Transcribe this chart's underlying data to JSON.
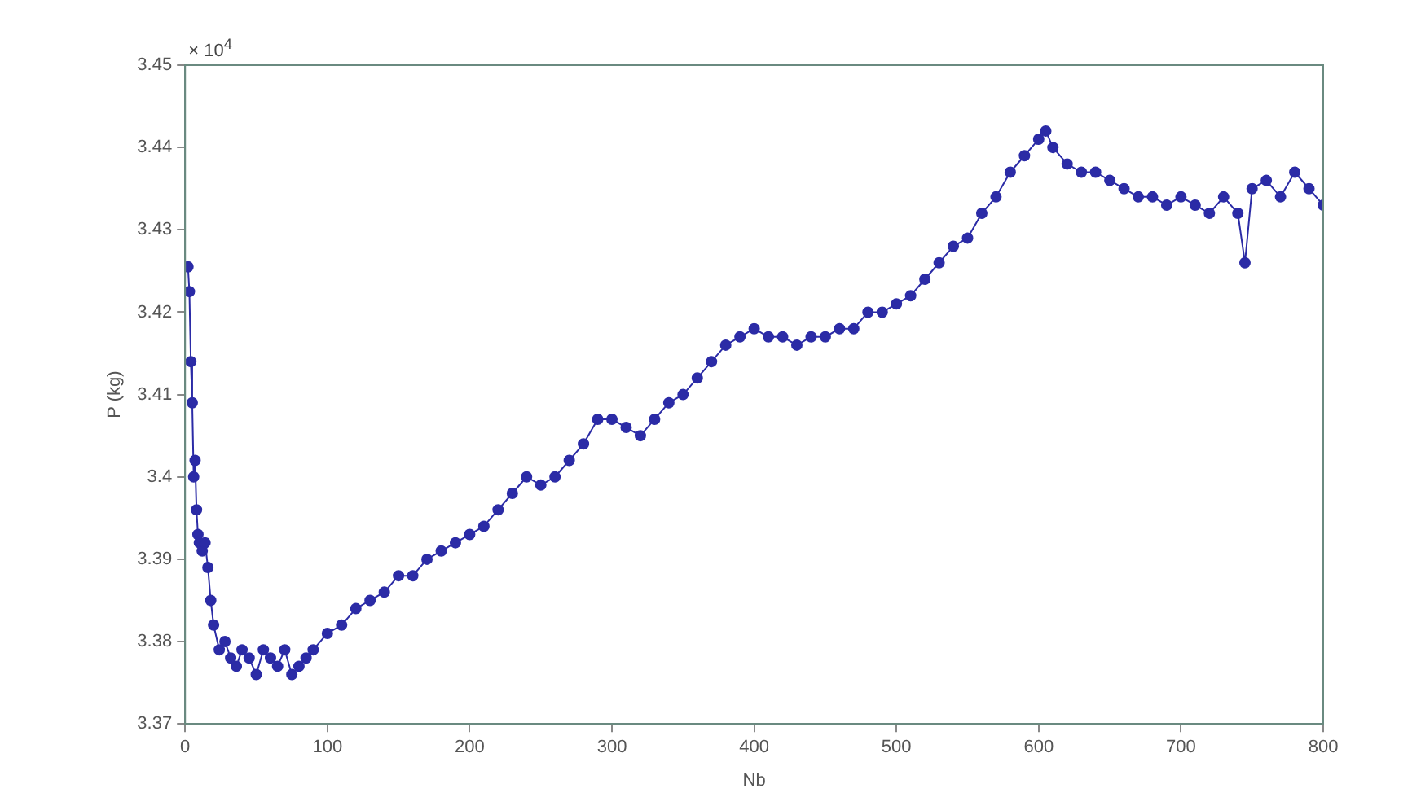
{
  "chart_data": {
    "type": "line",
    "xlabel": "Nb",
    "ylabel": "P (kg)",
    "annotations": [
      "× 10$^{4}$"
    ],
    "marker": "circle",
    "grid": false,
    "legend": false,
    "xlim": [
      0,
      800
    ],
    "xticks": [
      0,
      100,
      200,
      300,
      400,
      500,
      600,
      700,
      800
    ],
    "ylim": [
      3.37,
      3.45
    ],
    "yticks": [
      3.37,
      3.38,
      3.39,
      3.4,
      3.41,
      3.42,
      3.43,
      3.44,
      3.45
    ],
    "series": [
      {
        "color": "#2b2ba6",
        "x": [
          2,
          3,
          4,
          5,
          6,
          7,
          8,
          9,
          10,
          12,
          14,
          16,
          18,
          20,
          24,
          28,
          32,
          36,
          40,
          45,
          50,
          55,
          60,
          65,
          70,
          75,
          80,
          85,
          90,
          100,
          110,
          120,
          130,
          140,
          150,
          160,
          170,
          180,
          190,
          200,
          210,
          220,
          230,
          240,
          250,
          260,
          270,
          280,
          290,
          300,
          310,
          320,
          330,
          340,
          350,
          360,
          370,
          380,
          390,
          400,
          410,
          420,
          430,
          440,
          450,
          460,
          470,
          480,
          490,
          500,
          510,
          520,
          530,
          540,
          550,
          560,
          570,
          580,
          590,
          600,
          605,
          610,
          620,
          630,
          640,
          650,
          660,
          670,
          680,
          690,
          700,
          710,
          720,
          730,
          740,
          745,
          750,
          760,
          770,
          780,
          790,
          800
        ],
        "values": [
          3.4255,
          3.4225,
          3.414,
          3.409,
          3.4,
          3.402,
          3.396,
          3.393,
          3.392,
          3.391,
          3.392,
          3.389,
          3.385,
          3.382,
          3.379,
          3.38,
          3.378,
          3.377,
          3.379,
          3.378,
          3.376,
          3.379,
          3.378,
          3.377,
          3.379,
          3.376,
          3.377,
          3.378,
          3.379,
          3.381,
          3.382,
          3.384,
          3.385,
          3.386,
          3.388,
          3.388,
          3.39,
          3.391,
          3.392,
          3.393,
          3.394,
          3.396,
          3.398,
          3.4,
          3.399,
          3.4,
          3.402,
          3.404,
          3.407,
          3.407,
          3.406,
          3.405,
          3.407,
          3.409,
          3.41,
          3.412,
          3.414,
          3.416,
          3.417,
          3.418,
          3.417,
          3.417,
          3.416,
          3.417,
          3.417,
          3.418,
          3.418,
          3.42,
          3.42,
          3.421,
          3.422,
          3.424,
          3.426,
          3.428,
          3.429,
          3.432,
          3.434,
          3.437,
          3.439,
          3.441,
          3.442,
          3.44,
          3.438,
          3.437,
          3.437,
          3.436,
          3.435,
          3.434,
          3.434,
          3.433,
          3.434,
          3.433,
          3.432,
          3.434,
          3.432,
          3.426,
          3.435,
          3.436,
          3.434,
          3.437,
          3.435,
          3.433
        ]
      }
    ]
  }
}
